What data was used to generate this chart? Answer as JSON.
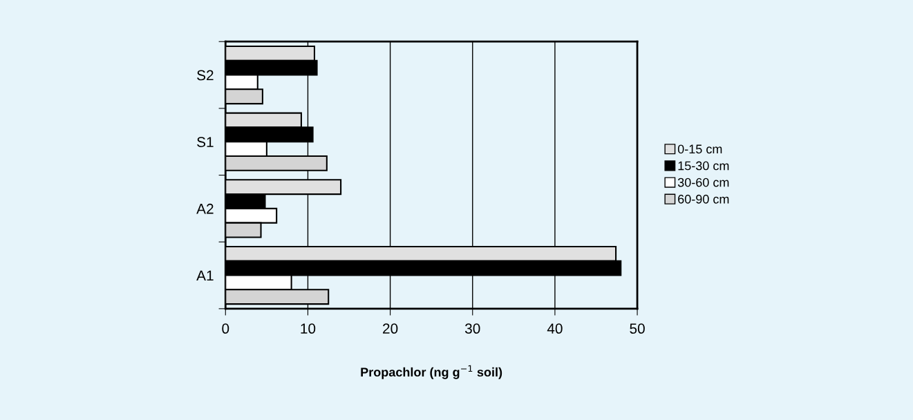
{
  "chart_data": {
    "type": "bar",
    "orientation": "horizontal",
    "xlabel": "Propachlor (ng g$^{−1}$ soil)",
    "categories": [
      "S2",
      "S1",
      "A2",
      "A1"
    ],
    "series": [
      {
        "name": "0-15 cm",
        "color": "#e0e0e0",
        "values": [
          10.8,
          9.2,
          14.0,
          47.4
        ]
      },
      {
        "name": "15-30 cm",
        "color": "#000000",
        "values": [
          11.1,
          10.6,
          4.8,
          48.0
        ]
      },
      {
        "name": "30-60 cm",
        "color": "#ffffff",
        "values": [
          3.9,
          5.0,
          6.2,
          8.0
        ]
      },
      {
        "name": "60-90 cm",
        "color": "#d4d4d4",
        "values": [
          4.5,
          12.3,
          4.3,
          12.5
        ]
      }
    ],
    "xlim": [
      0,
      50
    ],
    "xticks": [
      0,
      10,
      20,
      30,
      40,
      50
    ],
    "grid": "x",
    "legend": "right"
  }
}
